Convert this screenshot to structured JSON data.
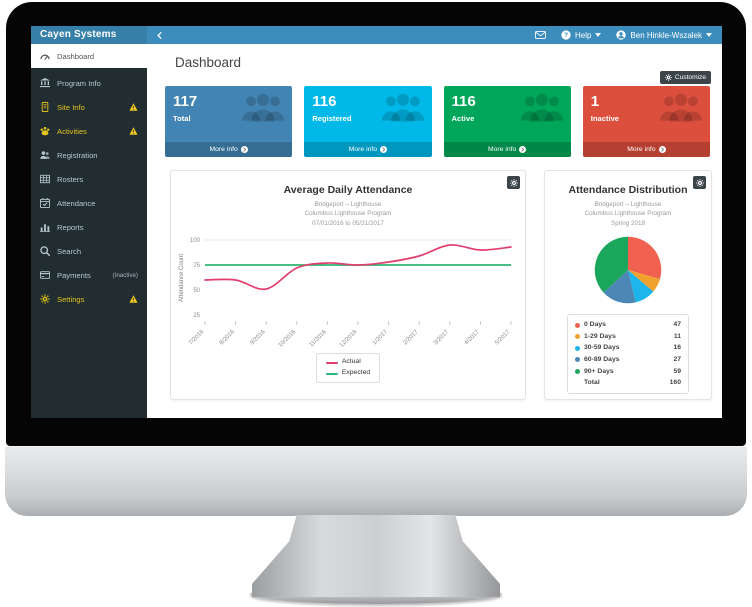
{
  "header": {
    "brand": "Cayen Systems",
    "help_label": "Help",
    "user_name": "Ben Hinkle-Wszalek"
  },
  "sidebar": {
    "items": [
      {
        "key": "dashboard",
        "label": "Dashboard",
        "icon": "dashboard",
        "active": true
      },
      {
        "key": "program-info",
        "label": "Program Info",
        "icon": "bank"
      },
      {
        "key": "site-info",
        "label": "Site Info",
        "icon": "site",
        "warning": true,
        "color": "#e3c21c"
      },
      {
        "key": "activities",
        "label": "Activities",
        "icon": "activities",
        "warning": true,
        "color": "#e3c21c"
      },
      {
        "key": "registration",
        "label": "Registration",
        "icon": "users"
      },
      {
        "key": "rosters",
        "label": "Rosters",
        "icon": "table"
      },
      {
        "key": "attendance",
        "label": "Attendance",
        "icon": "calendar"
      },
      {
        "key": "reports",
        "label": "Reports",
        "icon": "chart"
      },
      {
        "key": "search",
        "label": "Search",
        "icon": "search"
      },
      {
        "key": "payments",
        "label": "Payments",
        "icon": "card",
        "badge": "(Inactive)"
      },
      {
        "key": "settings",
        "label": "Settings",
        "icon": "gear",
        "warning": true,
        "color": "#e3c21c"
      }
    ]
  },
  "page": {
    "title": "Dashboard",
    "customize_label": "Customize",
    "more_info_label": "More info"
  },
  "cards": [
    {
      "key": "total",
      "value": "117",
      "label": "Total",
      "color": "#4285b4"
    },
    {
      "key": "registered",
      "value": "116",
      "label": "Registered",
      "color": "#00b9e8"
    },
    {
      "key": "active",
      "value": "116",
      "label": "Active",
      "color": "#00a65a"
    },
    {
      "key": "inactive",
      "value": "1",
      "label": "Inactive",
      "color": "#dd4f3d"
    }
  ],
  "chart_data": [
    {
      "type": "line",
      "title": "Average Daily Attendance",
      "subtitle": [
        "Bridgeport – Lighthouse",
        "Columbus Lighthouse Program",
        "07/01/2016 to 05/31/2017"
      ],
      "categories": [
        "7/2016",
        "8/2016",
        "9/2016",
        "10/2016",
        "11/2016",
        "12/2016",
        "1/2017",
        "2/2017",
        "3/2017",
        "4/2017",
        "5/2017"
      ],
      "ylabel": "Attendance Count",
      "yticks": [
        25,
        50,
        75,
        100
      ],
      "ylim": [
        25,
        100
      ],
      "series": [
        {
          "name": "Actual",
          "color": "#e23d6d",
          "values": [
            60,
            60,
            51,
            72,
            77,
            75,
            78,
            84,
            95,
            90,
            93
          ]
        },
        {
          "name": "Expected",
          "color": "#2bb673",
          "values": [
            75,
            75,
            75,
            75,
            75,
            75,
            75,
            75,
            75,
            75,
            75
          ]
        }
      ],
      "legend_position": "bottom"
    },
    {
      "type": "pie",
      "title": "Attendance Distribution",
      "subtitle": [
        "Bridgeport – Lighthouse",
        "Columbus Lighthouse Program",
        "Spring 2018"
      ],
      "slices": [
        {
          "label": "0 Days",
          "value": 47,
          "color": "#f0624f"
        },
        {
          "label": "1-29 Days",
          "value": 11,
          "color": "#f0a12e"
        },
        {
          "label": "30-59 Days",
          "value": 16,
          "color": "#1cb5ec"
        },
        {
          "label": "60-89 Days",
          "value": 27,
          "color": "#4d87b5"
        },
        {
          "label": "90+ Days",
          "value": 59,
          "color": "#1aa65b"
        }
      ],
      "total_label": "Total",
      "total": 160,
      "legend_position": "bottom"
    }
  ],
  "colors": {
    "navbar": "#3c8dbc",
    "logo_bg": "#367fa9",
    "sidebar_bg": "#222d32",
    "sidebar_text": "#b8c7ce",
    "warning_yellow": "#f3c623",
    "panel_button": "#3b4449"
  }
}
